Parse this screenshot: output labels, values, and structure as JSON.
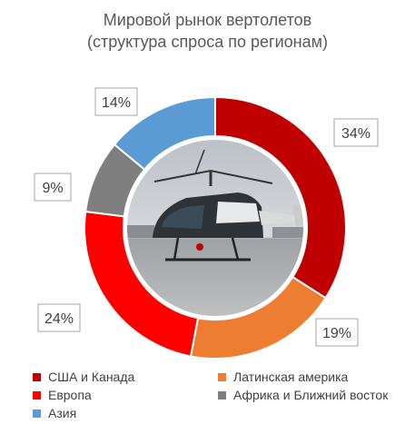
{
  "chart_data": {
    "type": "pie",
    "variant": "donut",
    "title": "Мировой рынок вертолетов",
    "subtitle": "(структура спроса по регионам)",
    "categories": [
      "США и Канада",
      "Латинская америка",
      "Европа",
      "Африка и Ближний восток",
      "Азия"
    ],
    "values": [
      34,
      19,
      24,
      9,
      14
    ],
    "labels": [
      "34%",
      "19%",
      "24%",
      "9%",
      "14%"
    ],
    "unit": "%",
    "colors": [
      "#c00000",
      "#ed7d31",
      "#ff0000",
      "#7f7f7f",
      "#5b9bd5"
    ],
    "legend_position": "bottom",
    "center_image": "helicopter-photo"
  }
}
